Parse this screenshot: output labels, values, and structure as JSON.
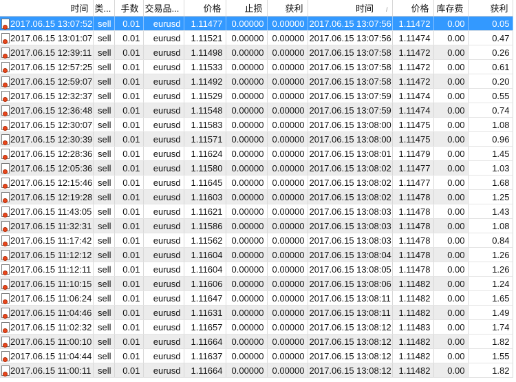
{
  "colors": {
    "selected_row": "#3399ff",
    "alt_row": "#ececec",
    "order_icon_dot": "#e8461c"
  },
  "columns": [
    "时间",
    "类...",
    "手数",
    "交易品...",
    "价格",
    "止损",
    "获利",
    "时间",
    "价格",
    "库存费",
    "获利"
  ],
  "sort_indicator": "/",
  "selected_row": 0,
  "rows": [
    [
      "2017.06.15 13:07:52",
      "sell",
      "0.01",
      "eurusd",
      "1.11477",
      "0.00000",
      "0.00000",
      "2017.06.15 13:07:56",
      "1.11472",
      "0.00",
      "0.05"
    ],
    [
      "2017.06.15 13:01:07",
      "sell",
      "0.01",
      "eurusd",
      "1.11521",
      "0.00000",
      "0.00000",
      "2017.06.15 13:07:56",
      "1.11474",
      "0.00",
      "0.47"
    ],
    [
      "2017.06.15 12:39:11",
      "sell",
      "0.01",
      "eurusd",
      "1.11498",
      "0.00000",
      "0.00000",
      "2017.06.15 13:07:58",
      "1.11472",
      "0.00",
      "0.26"
    ],
    [
      "2017.06.15 12:57:25",
      "sell",
      "0.01",
      "eurusd",
      "1.11533",
      "0.00000",
      "0.00000",
      "2017.06.15 13:07:58",
      "1.11472",
      "0.00",
      "0.61"
    ],
    [
      "2017.06.15 12:59:07",
      "sell",
      "0.01",
      "eurusd",
      "1.11492",
      "0.00000",
      "0.00000",
      "2017.06.15 13:07:58",
      "1.11472",
      "0.00",
      "0.20"
    ],
    [
      "2017.06.15 12:32:37",
      "sell",
      "0.01",
      "eurusd",
      "1.11529",
      "0.00000",
      "0.00000",
      "2017.06.15 13:07:59",
      "1.11474",
      "0.00",
      "0.55"
    ],
    [
      "2017.06.15 12:36:48",
      "sell",
      "0.01",
      "eurusd",
      "1.11548",
      "0.00000",
      "0.00000",
      "2017.06.15 13:07:59",
      "1.11474",
      "0.00",
      "0.74"
    ],
    [
      "2017.06.15 12:30:07",
      "sell",
      "0.01",
      "eurusd",
      "1.11583",
      "0.00000",
      "0.00000",
      "2017.06.15 13:08:00",
      "1.11475",
      "0.00",
      "1.08"
    ],
    [
      "2017.06.15 12:30:39",
      "sell",
      "0.01",
      "eurusd",
      "1.11571",
      "0.00000",
      "0.00000",
      "2017.06.15 13:08:00",
      "1.11475",
      "0.00",
      "0.96"
    ],
    [
      "2017.06.15 12:28:36",
      "sell",
      "0.01",
      "eurusd",
      "1.11624",
      "0.00000",
      "0.00000",
      "2017.06.15 13:08:01",
      "1.11479",
      "0.00",
      "1.45"
    ],
    [
      "2017.06.15 12:05:36",
      "sell",
      "0.01",
      "eurusd",
      "1.11580",
      "0.00000",
      "0.00000",
      "2017.06.15 13:08:02",
      "1.11477",
      "0.00",
      "1.03"
    ],
    [
      "2017.06.15 12:15:46",
      "sell",
      "0.01",
      "eurusd",
      "1.11645",
      "0.00000",
      "0.00000",
      "2017.06.15 13:08:02",
      "1.11477",
      "0.00",
      "1.68"
    ],
    [
      "2017.06.15 12:19:28",
      "sell",
      "0.01",
      "eurusd",
      "1.11603",
      "0.00000",
      "0.00000",
      "2017.06.15 13:08:02",
      "1.11478",
      "0.00",
      "1.25"
    ],
    [
      "2017.06.15 11:43:05",
      "sell",
      "0.01",
      "eurusd",
      "1.11621",
      "0.00000",
      "0.00000",
      "2017.06.15 13:08:03",
      "1.11478",
      "0.00",
      "1.43"
    ],
    [
      "2017.06.15 11:32:31",
      "sell",
      "0.01",
      "eurusd",
      "1.11586",
      "0.00000",
      "0.00000",
      "2017.06.15 13:08:03",
      "1.11478",
      "0.00",
      "1.08"
    ],
    [
      "2017.06.15 11:17:42",
      "sell",
      "0.01",
      "eurusd",
      "1.11562",
      "0.00000",
      "0.00000",
      "2017.06.15 13:08:03",
      "1.11478",
      "0.00",
      "0.84"
    ],
    [
      "2017.06.15 11:12:12",
      "sell",
      "0.01",
      "eurusd",
      "1.11604",
      "0.00000",
      "0.00000",
      "2017.06.15 13:08:04",
      "1.11478",
      "0.00",
      "1.26"
    ],
    [
      "2017.06.15 11:12:11",
      "sell",
      "0.01",
      "eurusd",
      "1.11604",
      "0.00000",
      "0.00000",
      "2017.06.15 13:08:05",
      "1.11478",
      "0.00",
      "1.26"
    ],
    [
      "2017.06.15 11:10:15",
      "sell",
      "0.01",
      "eurusd",
      "1.11606",
      "0.00000",
      "0.00000",
      "2017.06.15 13:08:06",
      "1.11482",
      "0.00",
      "1.24"
    ],
    [
      "2017.06.15 11:06:24",
      "sell",
      "0.01",
      "eurusd",
      "1.11647",
      "0.00000",
      "0.00000",
      "2017.06.15 13:08:11",
      "1.11482",
      "0.00",
      "1.65"
    ],
    [
      "2017.06.15 11:04:46",
      "sell",
      "0.01",
      "eurusd",
      "1.11631",
      "0.00000",
      "0.00000",
      "2017.06.15 13:08:11",
      "1.11482",
      "0.00",
      "1.49"
    ],
    [
      "2017.06.15 11:02:32",
      "sell",
      "0.01",
      "eurusd",
      "1.11657",
      "0.00000",
      "0.00000",
      "2017.06.15 13:08:12",
      "1.11483",
      "0.00",
      "1.74"
    ],
    [
      "2017.06.15 11:00:10",
      "sell",
      "0.01",
      "eurusd",
      "1.11664",
      "0.00000",
      "0.00000",
      "2017.06.15 13:08:12",
      "1.11482",
      "0.00",
      "1.82"
    ],
    [
      "2017.06.15 11:04:44",
      "sell",
      "0.01",
      "eurusd",
      "1.11637",
      "0.00000",
      "0.00000",
      "2017.06.15 13:08:12",
      "1.11482",
      "0.00",
      "1.55"
    ],
    [
      "2017.06.15 11:00:11",
      "sell",
      "0.01",
      "eurusd",
      "1.11664",
      "0.00000",
      "0.00000",
      "2017.06.15 13:08:12",
      "1.11482",
      "0.00",
      "1.82"
    ]
  ]
}
